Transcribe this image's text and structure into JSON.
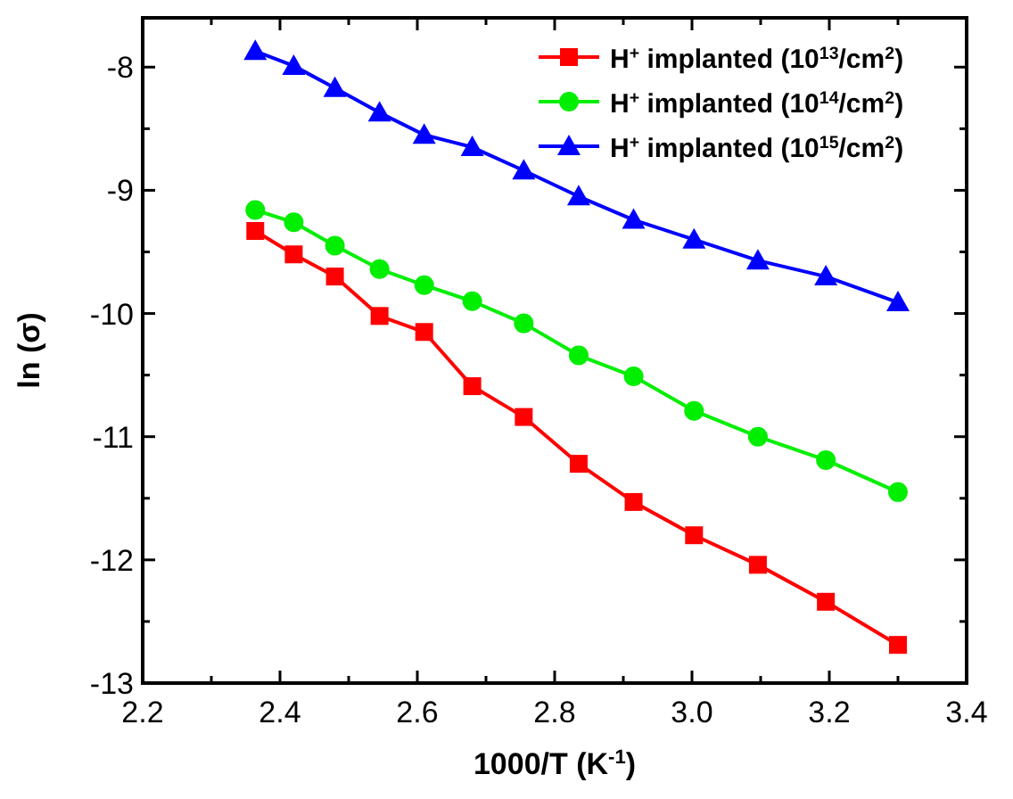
{
  "chart_data": {
    "type": "line",
    "xlabel": "1000/T  (K$^{-1}$)",
    "ylabel": "ln (σ)",
    "xlim": [
      2.2,
      3.4
    ],
    "ylim": [
      -13,
      -7.6
    ],
    "xticks": [
      2.2,
      2.4,
      2.6,
      2.8,
      {
        "value": 3,
        "label": "3.0"
      },
      3.2,
      3.4
    ],
    "yticks": [
      -13,
      -12,
      -11,
      -10,
      -9,
      -8
    ],
    "grid": false,
    "legend": "top right",
    "line_style": "solid",
    "x": [
      2.364,
      2.42,
      2.48,
      2.545,
      2.61,
      2.68,
      2.755,
      2.835,
      2.915,
      3.003,
      3.096,
      3.195,
      3.3
    ],
    "series": [
      {
        "name": "H$^{+}$ implanted (10$^{13}$/cm$^{2}$)",
        "color": "#ff0000",
        "marker": "square",
        "values": [
          -9.33,
          -9.52,
          -9.7,
          -10.02,
          -10.15,
          -10.59,
          -10.84,
          -11.22,
          -11.53,
          -11.8,
          -12.04,
          -12.34,
          -12.69
        ]
      },
      {
        "name": "H$^{+}$ implanted (10$^{14}$/cm$^{2}$)",
        "color": "#00ee00",
        "marker": "circle",
        "values": [
          -9.16,
          -9.26,
          -9.45,
          -9.64,
          -9.77,
          -9.9,
          -10.08,
          -10.34,
          -10.51,
          -10.79,
          -11.0,
          -11.19,
          -11.45
        ]
      },
      {
        "name": "H$^{+}$ implanted (10$^{15}$/cm$^{2}$)",
        "color": "#0000ff",
        "marker": "triangle",
        "values": [
          -7.87,
          -7.99,
          -8.17,
          -8.37,
          -8.55,
          -8.65,
          -8.84,
          -9.05,
          -9.24,
          -9.4,
          -9.57,
          -9.7,
          -9.91
        ]
      }
    ]
  }
}
